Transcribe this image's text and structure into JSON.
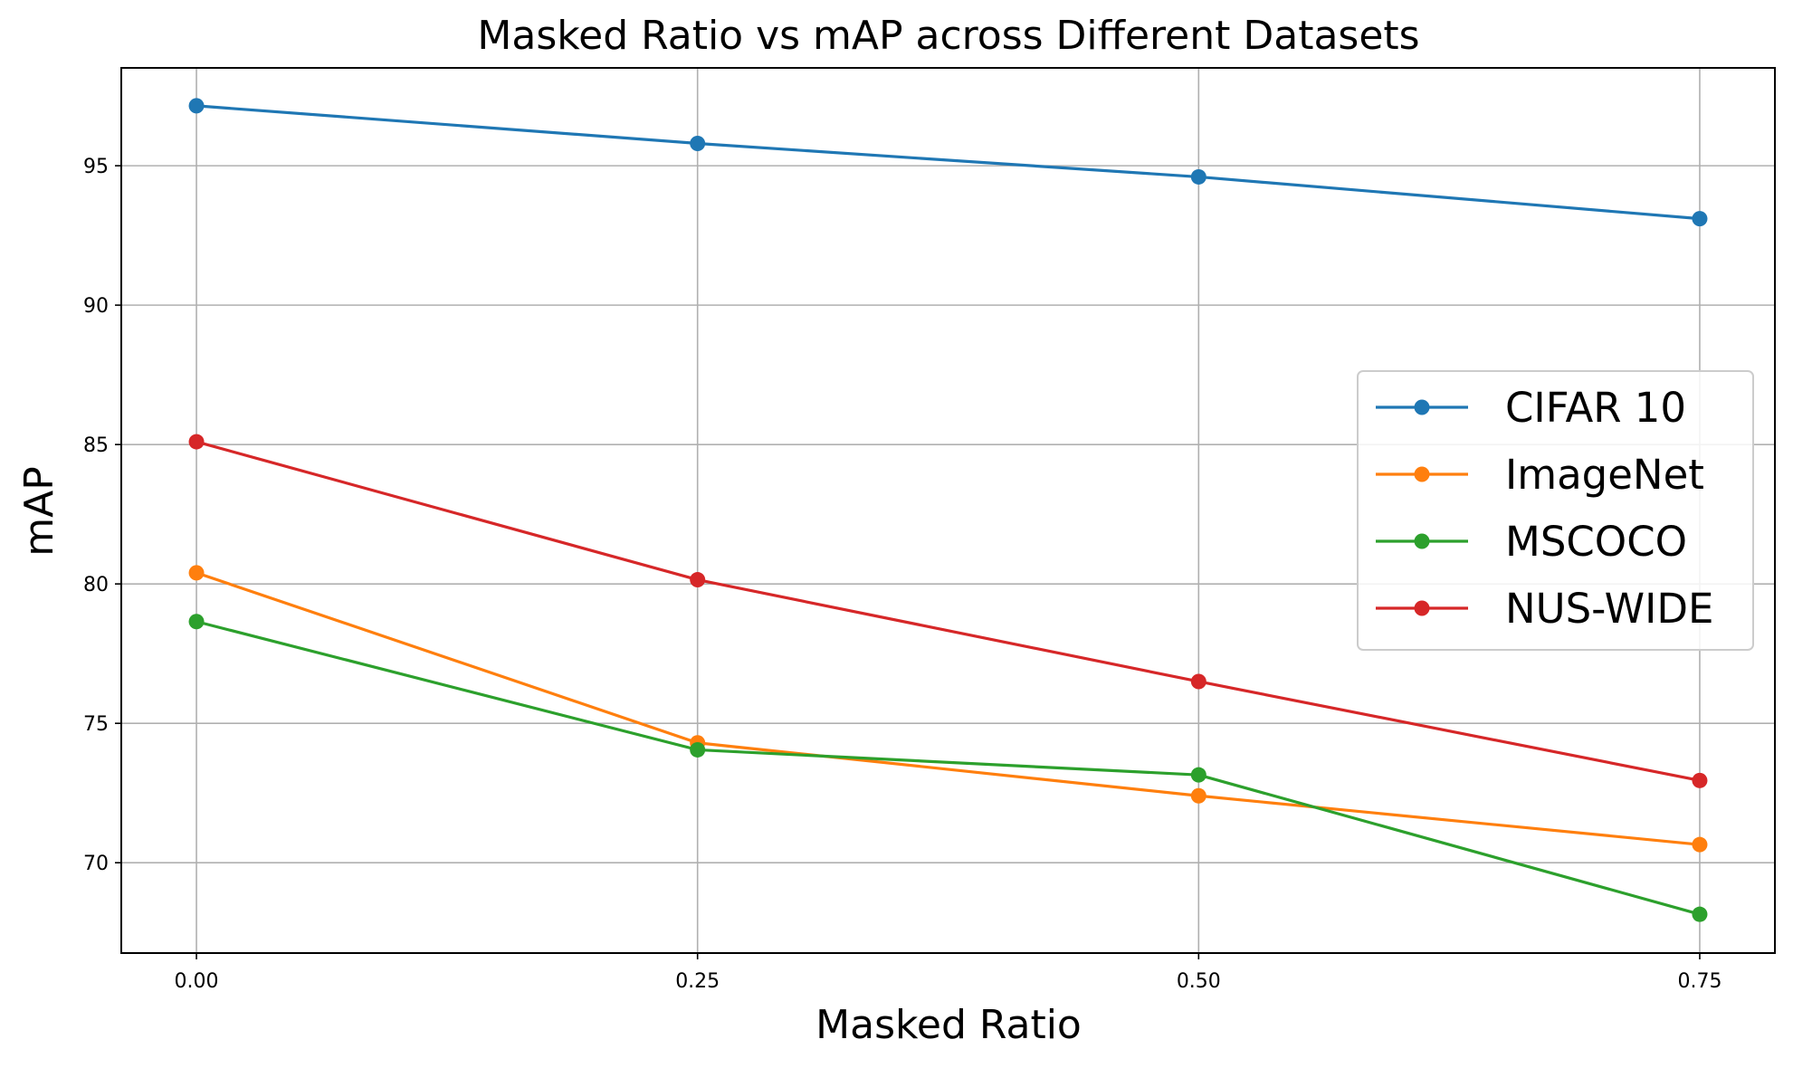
{
  "chart_data": {
    "type": "line",
    "title": "Masked Ratio vs mAP across Different Datasets",
    "xlabel": "Masked Ratio",
    "ylabel": "mAP",
    "x": [
      0.0,
      0.25,
      0.5,
      0.75
    ],
    "x_tick_labels": [
      "0.00",
      "0.25",
      "0.50",
      "0.75"
    ],
    "y_ticks": [
      70,
      75,
      80,
      85,
      90,
      95
    ],
    "xlim": [
      -0.0375,
      0.7875
    ],
    "ylim": [
      66.76,
      98.51
    ],
    "grid": true,
    "legend_position": "center-right",
    "series": [
      {
        "name": "CIFAR 10",
        "color": "#1f77b4",
        "values": [
          97.15,
          95.8,
          94.6,
          93.1
        ]
      },
      {
        "name": "ImageNet",
        "color": "#ff7f0e",
        "values": [
          80.4,
          74.3,
          72.4,
          70.65
        ]
      },
      {
        "name": "MSCOCO",
        "color": "#2ca02c",
        "values": [
          78.65,
          74.05,
          73.15,
          68.15
        ]
      },
      {
        "name": "NUS-WIDE",
        "color": "#d62728",
        "values": [
          85.1,
          80.15,
          76.5,
          72.95
        ]
      }
    ]
  }
}
